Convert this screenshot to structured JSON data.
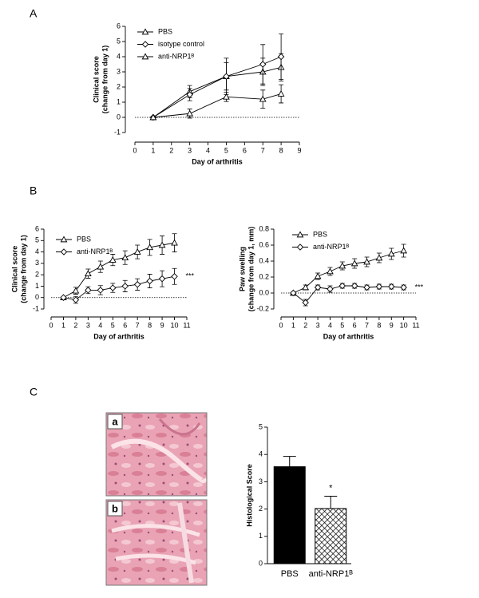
{
  "chart_data": [
    {
      "panel": "A",
      "type": "line",
      "x_label": "Day of arthritis",
      "y_label": [
        "Clinical score",
        "(change from day 1)"
      ],
      "x": [
        1,
        3,
        5,
        7,
        8
      ],
      "xlim": [
        0,
        9
      ],
      "xticks": [
        0,
        1,
        2,
        3,
        4,
        5,
        6,
        7,
        8,
        9
      ],
      "ylim": [
        -1,
        6
      ],
      "yticks": [
        -1,
        0,
        1,
        2,
        3,
        4,
        5,
        6
      ],
      "zero_line": true,
      "series": [
        {
          "name": "PBS",
          "marker": "triangle",
          "color": "#000000",
          "values": [
            0,
            1.7,
            2.7,
            3.0,
            3.3
          ],
          "errors": [
            0,
            0.4,
            0.9,
            0.9,
            0.9
          ]
        },
        {
          "name": "isotype control",
          "marker": "diamond",
          "color": "#000000",
          "values": [
            0,
            1.5,
            2.7,
            3.5,
            4.0
          ],
          "errors": [
            0,
            0.4,
            1.2,
            1.3,
            1.5
          ]
        },
        {
          "name": "anti-NRP1ᴮ",
          "marker": "triangle",
          "color": "#000000",
          "values": [
            0,
            0.25,
            1.35,
            1.2,
            1.55
          ],
          "errors": [
            0,
            0.3,
            0.3,
            0.6,
            0.6
          ]
        }
      ]
    },
    {
      "panel": "B",
      "type": "line",
      "x_label": "Day of arthritis",
      "y_label": [
        "Clinical score",
        "(change from day 1)"
      ],
      "x": [
        1,
        2,
        3,
        4,
        5,
        6,
        7,
        8,
        9,
        10
      ],
      "xlim": [
        0,
        11
      ],
      "xticks": [
        0,
        1,
        2,
        3,
        4,
        5,
        6,
        7,
        8,
        9,
        10,
        11
      ],
      "ylim": [
        -1,
        6
      ],
      "yticks": [
        -1,
        0,
        1,
        2,
        3,
        4,
        5,
        6
      ],
      "zero_line": true,
      "annotation": "***",
      "series": [
        {
          "name": "PBS",
          "marker": "triangle",
          "color": "#000000",
          "values": [
            0,
            0.6,
            2.1,
            2.7,
            3.3,
            3.5,
            4.0,
            4.4,
            4.6,
            4.8
          ],
          "errors": [
            0,
            0.3,
            0.4,
            0.5,
            0.5,
            0.6,
            0.6,
            0.7,
            0.8,
            0.8
          ]
        },
        {
          "name": "anti-NRP1ᴮ",
          "marker": "diamond",
          "color": "#000000",
          "values": [
            0,
            -0.2,
            0.65,
            0.65,
            0.85,
            1.0,
            1.15,
            1.45,
            1.65,
            1.85
          ],
          "errors": [
            0,
            0.3,
            0.3,
            0.4,
            0.4,
            0.5,
            0.5,
            0.6,
            0.7,
            0.7
          ]
        }
      ]
    },
    {
      "type": "line",
      "x_label": "Day of arthritis",
      "y_label": [
        "Paw swelling",
        "(change from day 1, mm)"
      ],
      "x": [
        1,
        2,
        3,
        4,
        5,
        6,
        7,
        8,
        9,
        10
      ],
      "xlim": [
        0,
        11
      ],
      "xticks": [
        0,
        1,
        2,
        3,
        4,
        5,
        6,
        7,
        8,
        9,
        10,
        11
      ],
      "ylim": [
        -0.2,
        0.8
      ],
      "yticks": [
        -0.2,
        {
          "value": 0,
          "label": "0.0"
        },
        0.2,
        0.4,
        0.6,
        0.8
      ],
      "zero_line": true,
      "annotation": "***",
      "series": [
        {
          "name": "PBS",
          "marker": "triangle",
          "color": "#000000",
          "values": [
            0,
            0.07,
            0.21,
            0.27,
            0.34,
            0.37,
            0.39,
            0.44,
            0.49,
            0.53
          ],
          "errors": [
            0,
            0.03,
            0.04,
            0.05,
            0.05,
            0.06,
            0.06,
            0.06,
            0.07,
            0.08
          ]
        },
        {
          "name": "anti-NRP1ᴮ",
          "marker": "diamond",
          "color": "#000000",
          "values": [
            0,
            -0.12,
            0.07,
            0.05,
            0.09,
            0.09,
            0.07,
            0.08,
            0.08,
            0.07
          ],
          "errors": [
            0,
            0.04,
            0.03,
            0.04,
            0.03,
            0.03,
            0.03,
            0.03,
            0.03,
            0.03
          ]
        }
      ]
    },
    {
      "panel": "C",
      "type": "bar",
      "y_label": [
        "Histological Score"
      ],
      "categories": [
        "PBS",
        "anti-NRP1ᴮ"
      ],
      "values": [
        3.55,
        2.02
      ],
      "errors": [
        0.38,
        0.45
      ],
      "colors": [
        "#000000",
        "#000000"
      ],
      "hatch": [
        false,
        true
      ],
      "ylim": [
        0,
        5
      ],
      "yticks": [
        0,
        1,
        2,
        3,
        4,
        5
      ],
      "annotation": "*"
    }
  ],
  "images": [
    {
      "label": "a"
    },
    {
      "label": "b"
    }
  ]
}
